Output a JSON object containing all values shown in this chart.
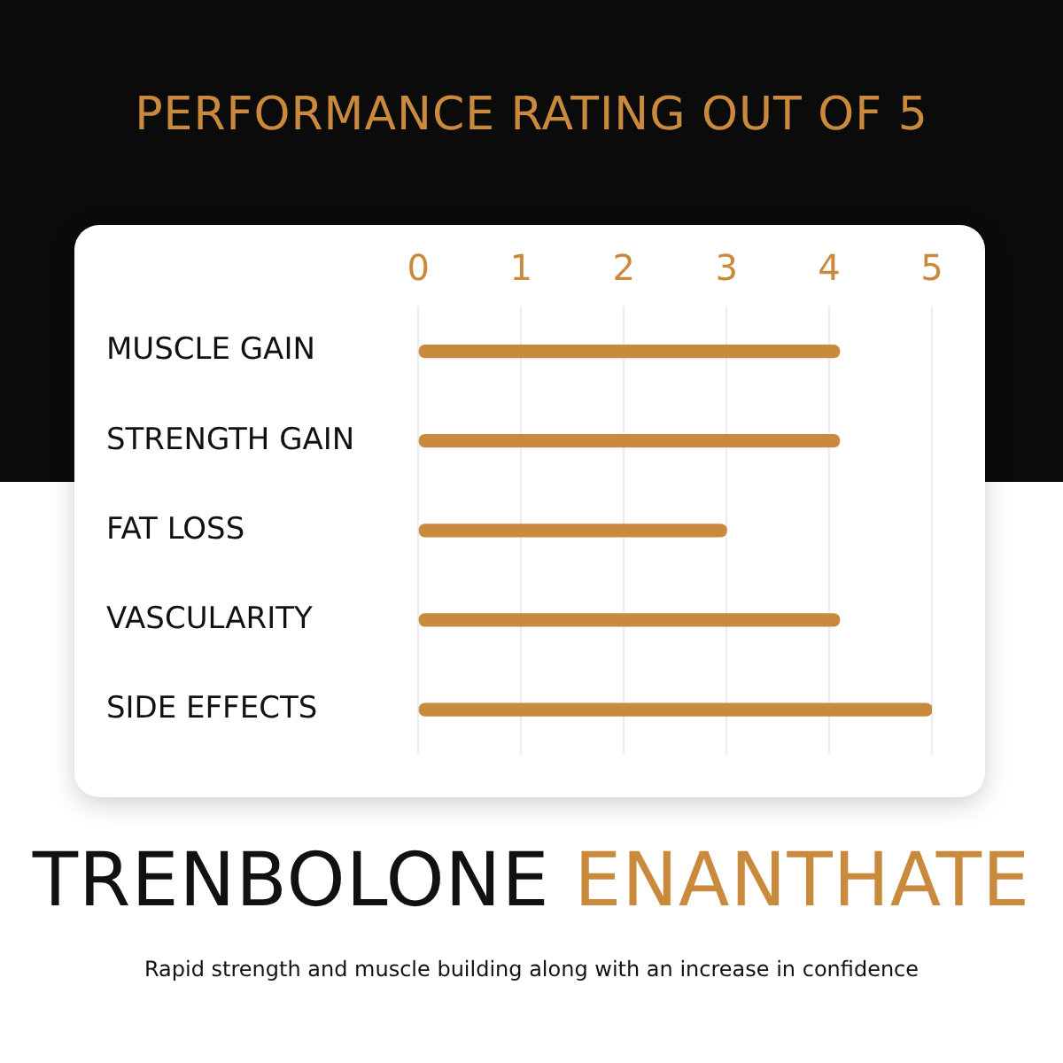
{
  "chart_data": {
    "type": "bar",
    "orientation": "horizontal",
    "title": "PERFORMANCE RATING OUT OF 5",
    "subtitle": "TRENBOLONE ENANTHATE",
    "annotations": [
      "Rapid strength and muscle building along with an increase in confidence"
    ],
    "categories": [
      "MUSCLE GAIN",
      "STRENGTH GAIN",
      "FAT LOSS",
      "VASCULARITY",
      "SIDE EFFECTS"
    ],
    "values": [
      4.1,
      4.1,
      3,
      4.1,
      5
    ],
    "color": "#c98a3e",
    "xlim": [
      0,
      5
    ],
    "xticks": [
      0,
      1,
      2,
      3,
      4,
      5
    ],
    "grid": "x"
  }
}
